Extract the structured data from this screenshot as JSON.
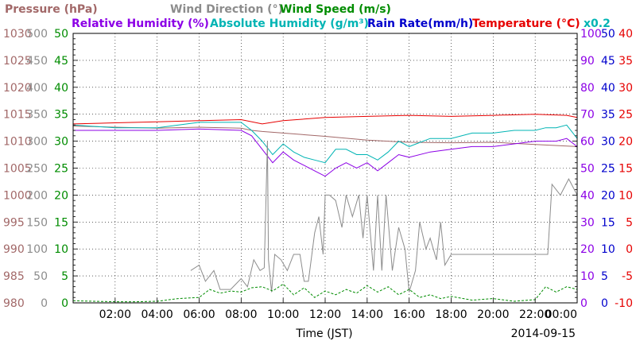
{
  "chart_data": {
    "type": "line",
    "legend": [
      {
        "label": "Pressure (hPa)",
        "color": "#a26868"
      },
      {
        "label": "Wind Direction (°)",
        "color": "#8c8c8c"
      },
      {
        "label": "Wind Speed (m/s)",
        "color": "#008c00"
      },
      {
        "label": "Relative Humidity (%)",
        "color": "#8c00e6"
      },
      {
        "label": "Absolute Humidity (g/m³)",
        "color": "#00b4b4"
      },
      {
        "label": "Rain Rate(mm/h)",
        "color": "#0000cc"
      },
      {
        "label": "Temperature (°C)",
        "color": "#e60000"
      },
      {
        "label": "x0.2",
        "color": "#00b4b4"
      }
    ],
    "xlabel": "Time (JST)",
    "date_label": "2014-09-15",
    "x_ticks": [
      "02:00",
      "04:00",
      "06:00",
      "08:00",
      "10:00",
      "12:00",
      "14:00",
      "16:00",
      "18:00",
      "20:00",
      "22:00",
      "00:00"
    ],
    "x_range_hours": [
      0,
      24
    ],
    "grid": true,
    "axes": [
      {
        "name": "pressure",
        "color": "#a26868",
        "range": [
          980,
          1030
        ],
        "ticks": [
          "980",
          "985",
          "990",
          "995",
          "1000",
          "1005",
          "1010",
          "1015",
          "1020",
          "1025",
          "1030"
        ]
      },
      {
        "name": "wind_direction",
        "color": "#8c8c8c",
        "range": [
          0,
          500
        ],
        "ticks": [
          "0",
          "50",
          "100",
          "150",
          "200",
          "250",
          "300",
          "350",
          "400",
          "450",
          "500"
        ]
      },
      {
        "name": "wind_speed",
        "color": "#008c00",
        "range": [
          0,
          50
        ],
        "ticks": [
          "0",
          "5",
          "10",
          "15",
          "20",
          "25",
          "30",
          "35",
          "40",
          "45",
          "50"
        ]
      },
      {
        "name": "humidity",
        "color": "#8c00e6",
        "range": [
          0,
          100
        ],
        "ticks": [
          "0",
          "10",
          "20",
          "30",
          "40",
          "50",
          "60",
          "70",
          "80",
          "90",
          "100"
        ]
      },
      {
        "name": "rain_rate",
        "color": "#0000cc",
        "range": [
          0,
          50
        ],
        "ticks": [
          "0",
          "5",
          "10",
          "15",
          "20",
          "25",
          "30",
          "35",
          "40",
          "45",
          "50"
        ]
      },
      {
        "name": "temperature",
        "color": "#e60000",
        "range": [
          -10,
          40
        ],
        "ticks": [
          "-10",
          "-5",
          "0",
          "5",
          "10",
          "15",
          "20",
          "25",
          "30",
          "35",
          "40"
        ]
      }
    ],
    "series": [
      {
        "name": "Pressure (hPa)",
        "axis": "pressure",
        "color": "#a26868",
        "x": [
          0,
          2,
          4,
          6,
          8,
          8.5,
          9,
          10,
          12,
          14,
          16,
          18,
          20,
          22,
          24
        ],
        "y": [
          1012.8,
          1012.6,
          1012.4,
          1012.6,
          1012.4,
          1012.0,
          1011.8,
          1011.5,
          1010.9,
          1010.2,
          1009.8,
          1009.7,
          1009.8,
          1009.4,
          1009.0
        ]
      },
      {
        "name": "Temperature (°C)",
        "axis": "temperature",
        "color": "#e60000",
        "x": [
          0,
          2,
          4,
          6,
          8,
          9,
          10,
          12,
          14,
          16,
          18,
          20,
          22,
          23.5,
          24
        ],
        "y": [
          23.2,
          23.4,
          23.6,
          23.8,
          24.0,
          23.2,
          23.8,
          24.4,
          24.6,
          24.8,
          24.6,
          24.8,
          25.0,
          24.8,
          24.4
        ]
      },
      {
        "name": "Relative Humidity (%)",
        "axis": "humidity",
        "color": "#8c00e6",
        "x": [
          0,
          2,
          4,
          6,
          8,
          8.5,
          9,
          9.5,
          10,
          10.5,
          11,
          11.5,
          12,
          12.5,
          13,
          13.5,
          14,
          14.5,
          15,
          15.5,
          16,
          17,
          18,
          19,
          20,
          21,
          22,
          22.5,
          23,
          23.5,
          24
        ],
        "y": [
          64,
          64,
          64,
          64.5,
          64,
          62,
          57,
          52,
          56,
          53,
          51,
          49,
          47,
          50,
          52,
          50,
          52,
          49,
          52,
          55,
          54,
          56,
          57,
          58,
          58,
          59,
          60,
          60,
          60,
          61,
          58
        ]
      },
      {
        "name": "Absolute Humidity (g/m³) x0.2",
        "axis": "humidity",
        "color": "#00b4b4",
        "x": [
          0,
          2,
          4,
          6,
          8,
          8.5,
          9,
          9.5,
          10,
          10.5,
          11,
          11.5,
          12,
          12.5,
          13,
          13.5,
          14,
          14.5,
          15,
          15.5,
          16,
          17,
          18,
          19,
          20,
          21,
          22,
          22.5,
          23,
          23.5,
          24
        ],
        "y": [
          66,
          65,
          65,
          67,
          67,
          64,
          60,
          55,
          59,
          56,
          54,
          53,
          52,
          57,
          57,
          55,
          55,
          53,
          56,
          60,
          58,
          61,
          61,
          63,
          63,
          64,
          64,
          65,
          65,
          66,
          61
        ]
      },
      {
        "name": "Wind Direction (°)",
        "axis": "wind_direction",
        "color": "#8c8c8c",
        "x": [
          5.6,
          6.0,
          6.3,
          6.7,
          7.0,
          7.5,
          8.0,
          8.3,
          8.6,
          8.9,
          9.1,
          9.25,
          9.3,
          9.45,
          9.6,
          9.9,
          10.2,
          10.5,
          10.8,
          11.0,
          11.2,
          11.5,
          11.7,
          11.9,
          12.0,
          12.2,
          12.5,
          12.8,
          13.0,
          13.3,
          13.6,
          13.8,
          14.0,
          14.3,
          14.5,
          14.7,
          14.9,
          15.2,
          15.5,
          15.8,
          16.0,
          16.3,
          16.5,
          16.8,
          17.0,
          17.3,
          17.5,
          17.7,
          18.0,
          18.5,
          19.0,
          20.0,
          21.0,
          22.0,
          22.6,
          22.8,
          23.2,
          23.6,
          24.0
        ],
        "y": [
          60,
          70,
          40,
          60,
          25,
          25,
          45,
          30,
          80,
          60,
          65,
          300,
          80,
          20,
          90,
          80,
          60,
          90,
          90,
          40,
          40,
          130,
          160,
          90,
          200,
          200,
          190,
          140,
          200,
          160,
          200,
          120,
          200,
          60,
          200,
          60,
          200,
          60,
          140,
          100,
          20,
          60,
          150,
          100,
          120,
          80,
          150,
          70,
          90,
          90,
          90,
          90,
          90,
          90,
          90,
          220,
          200,
          230,
          200
        ]
      },
      {
        "name": "Wind Speed (m/s)",
        "axis": "wind_speed",
        "color": "#008c00",
        "x": [
          0,
          1,
          2,
          3,
          4,
          5,
          6,
          6.5,
          7,
          7.5,
          8,
          8.5,
          9,
          9.5,
          10,
          10.5,
          11,
          11.5,
          12,
          12.5,
          13,
          13.5,
          14,
          14.5,
          15,
          15.5,
          16,
          16.5,
          17,
          17.5,
          18,
          19,
          20,
          21,
          22,
          22.5,
          23,
          23.5,
          24
        ],
        "y": [
          0.4,
          0.3,
          0.2,
          0.2,
          0.3,
          0.8,
          1.0,
          2.5,
          1.8,
          2.2,
          2.0,
          2.8,
          3.0,
          2.2,
          3.5,
          1.5,
          2.8,
          1.0,
          2.2,
          1.5,
          2.5,
          1.8,
          3.2,
          2.0,
          3.0,
          1.5,
          2.5,
          1.0,
          1.5,
          0.8,
          1.2,
          0.5,
          0.8,
          0.3,
          0.6,
          3.0,
          2.0,
          3.0,
          2.5
        ]
      },
      {
        "name": "Rain Rate(mm/h)",
        "axis": "rain_rate",
        "color": "#0000cc",
        "x": [
          0,
          24
        ],
        "y": [
          0,
          0
        ]
      }
    ]
  }
}
